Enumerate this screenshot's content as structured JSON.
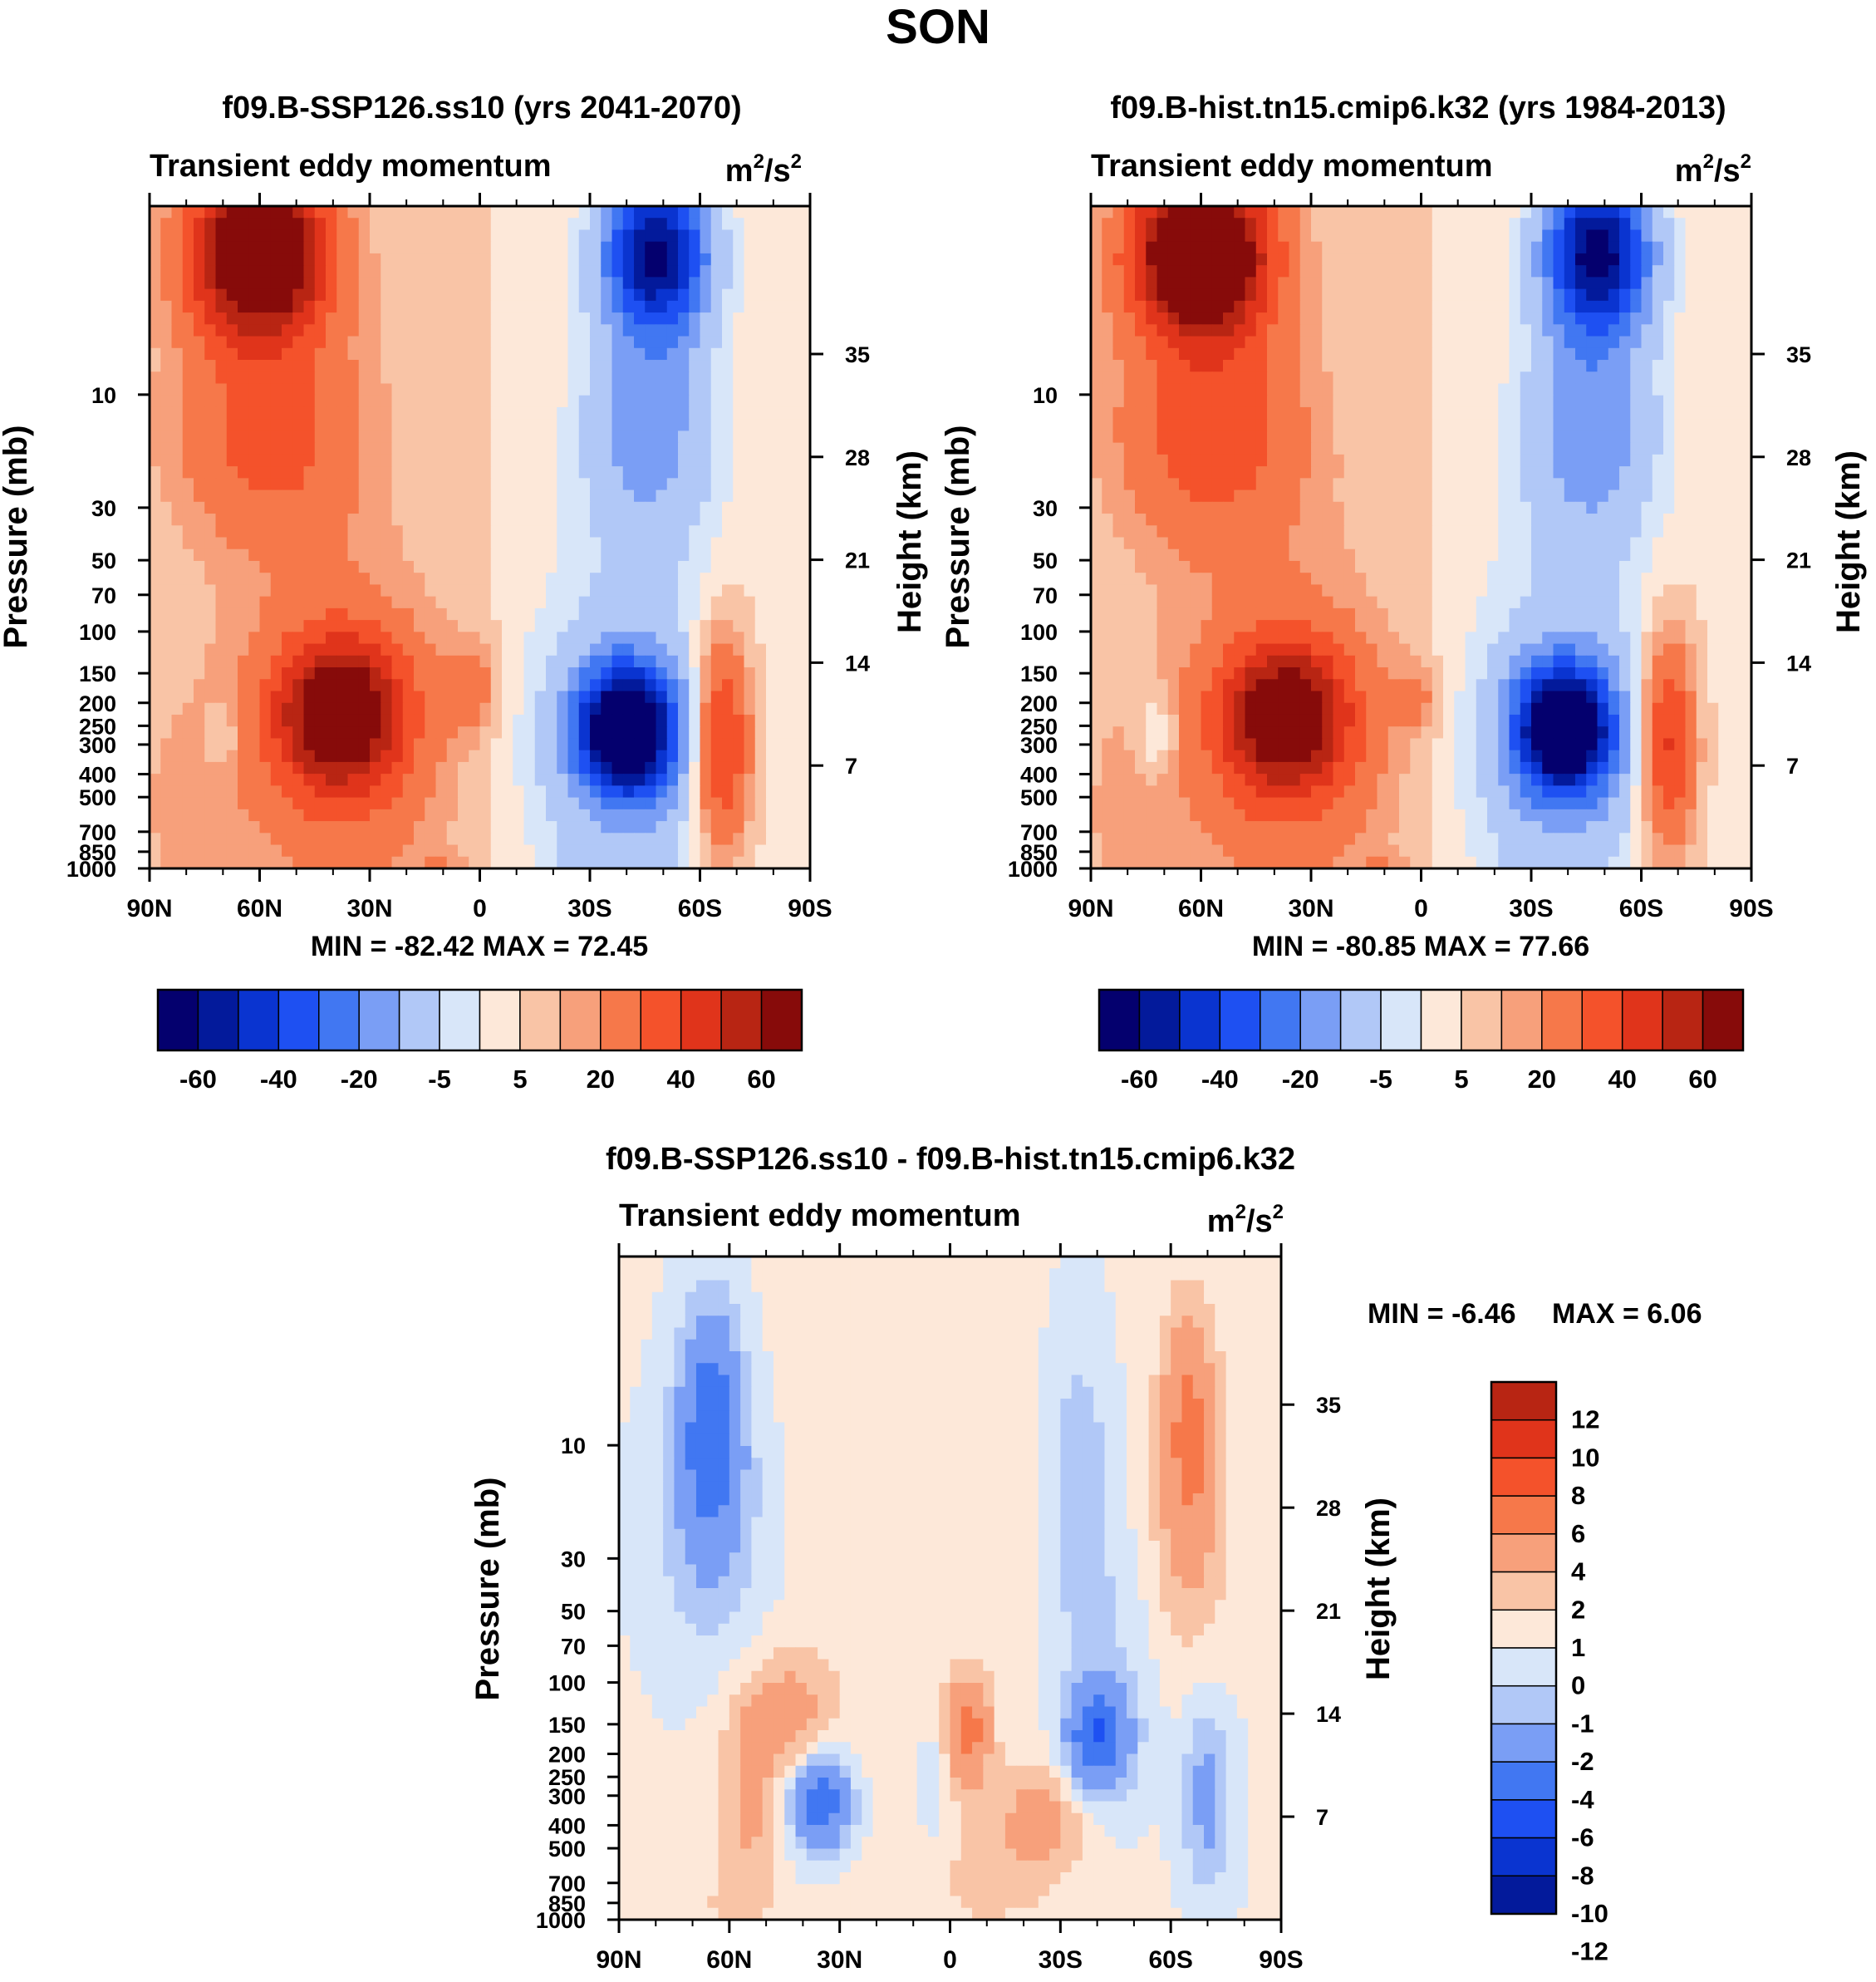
{
  "figure_title": "SON",
  "chart_data": [
    {
      "type": "heatmap",
      "panel": "top-left",
      "title": "f09.B-SSP126.ss10 (yrs 2041-2070)",
      "left_string": "Transient eddy momentum",
      "units_base": "m",
      "units_exp1": "2",
      "units_mid": "/s",
      "units_exp2": "2",
      "stats": "MIN = -82.42  MAX =  72.45",
      "min": -82.42,
      "max": 72.45,
      "xlabel": "",
      "ylabel": "Pressure (mb)",
      "y2label": "Height (km)",
      "x_tick_labels": [
        "90N",
        "60N",
        "30N",
        "0",
        "30S",
        "60S",
        "90S"
      ],
      "x_tick_values": [
        90,
        60,
        30,
        0,
        -30,
        -60,
        -90
      ],
      "y_ticks": [
        {
          "label": "10",
          "value": 10
        },
        {
          "label": "30",
          "value": 30
        },
        {
          "label": "50",
          "value": 50
        },
        {
          "label": "70",
          "value": 70
        },
        {
          "label": "100",
          "value": 100
        },
        {
          "label": "150",
          "value": 150
        },
        {
          "label": "200",
          "value": 200
        },
        {
          "label": "250",
          "value": 250
        },
        {
          "label": "300",
          "value": 300
        },
        {
          "label": "400",
          "value": 400
        },
        {
          "label": "500",
          "value": 500
        },
        {
          "label": "700",
          "value": 700
        },
        {
          "label": "850",
          "value": 850
        },
        {
          "label": "1000",
          "value": 1000
        }
      ],
      "y2_ticks": [
        {
          "label": "35",
          "value": 35
        },
        {
          "label": "28",
          "value": 28
        },
        {
          "label": "21",
          "value": 21
        },
        {
          "label": "14",
          "value": 14
        },
        {
          "label": "7",
          "value": 7
        }
      ],
      "levels": [
        -70,
        -60,
        -50,
        -40,
        -30,
        -20,
        -10,
        -5,
        0,
        5,
        10,
        20,
        30,
        40,
        50,
        60,
        70
      ],
      "colorbar_labels": [
        "-60",
        "-40",
        "-20",
        "-5",
        "5",
        "20",
        "40",
        "60"
      ],
      "features": [
        {
          "lat": 60,
          "p": 2.5,
          "amp": 80,
          "sx": 13,
          "sy": 0.55
        },
        {
          "lat": 57,
          "p": 14,
          "amp": 25,
          "sx": 18,
          "sy": 0.8
        },
        {
          "lat": 38,
          "p": 220,
          "amp": 55,
          "sx": 12,
          "sy": 0.5
        },
        {
          "lat": 38,
          "p": 300,
          "amp": 18,
          "sx": 22,
          "sy": 1.2
        },
        {
          "lat": 2,
          "p": 170,
          "amp": 14,
          "sx": 5,
          "sy": 0.3
        },
        {
          "lat": 80,
          "p": 600,
          "amp": 6,
          "sx": 10,
          "sy": 0.8
        },
        {
          "lat": 10,
          "p": 1000,
          "amp": 7,
          "sx": 5,
          "sy": 0.1
        },
        {
          "lat": -48,
          "p": 2.5,
          "amp": -72,
          "sx": 10,
          "sy": 0.55
        },
        {
          "lat": -46,
          "p": 14,
          "amp": -25,
          "sx": 13,
          "sy": 0.8
        },
        {
          "lat": -40,
          "p": 260,
          "amp": -88,
          "sx": 9,
          "sy": 0.42
        },
        {
          "lat": -40,
          "p": 300,
          "amp": -20,
          "sx": 20,
          "sy": 1.2
        },
        {
          "lat": -66,
          "p": 300,
          "amp": 40,
          "sx": 5.5,
          "sy": 0.75
        },
        {
          "lat": -30,
          "p": 1000,
          "amp": -6,
          "sx": 6,
          "sy": 0.1
        },
        {
          "lat": 70,
          "p": 280,
          "amp": -9,
          "sx": 4,
          "sy": 0.25
        }
      ]
    },
    {
      "type": "heatmap",
      "panel": "top-right",
      "title": "f09.B-hist.tn15.cmip6.k32 (yrs 1984-2013)",
      "left_string": "Transient eddy momentum",
      "units_base": "m",
      "units_exp1": "2",
      "units_mid": "/s",
      "units_exp2": "2",
      "stats": "MIN = -80.85  MAX =  77.66",
      "min": -80.85,
      "max": 77.66,
      "xlabel": "",
      "ylabel": "Pressure (mb)",
      "y2label": "Height (km)",
      "x_tick_labels": [
        "90N",
        "60N",
        "30N",
        "0",
        "30S",
        "60S",
        "90S"
      ],
      "x_tick_values": [
        90,
        60,
        30,
        0,
        -30,
        -60,
        -90
      ],
      "y_ticks": [
        {
          "label": "10",
          "value": 10
        },
        {
          "label": "30",
          "value": 30
        },
        {
          "label": "50",
          "value": 50
        },
        {
          "label": "70",
          "value": 70
        },
        {
          "label": "100",
          "value": 100
        },
        {
          "label": "150",
          "value": 150
        },
        {
          "label": "200",
          "value": 200
        },
        {
          "label": "250",
          "value": 250
        },
        {
          "label": "300",
          "value": 300
        },
        {
          "label": "400",
          "value": 400
        },
        {
          "label": "500",
          "value": 500
        },
        {
          "label": "700",
          "value": 700
        },
        {
          "label": "850",
          "value": 850
        },
        {
          "label": "1000",
          "value": 1000
        }
      ],
      "y2_ticks": [
        {
          "label": "35",
          "value": 35
        },
        {
          "label": "28",
          "value": 28
        },
        {
          "label": "21",
          "value": 21
        },
        {
          "label": "14",
          "value": 14
        },
        {
          "label": "7",
          "value": 7
        }
      ],
      "levels": [
        -70,
        -60,
        -50,
        -40,
        -30,
        -20,
        -10,
        -5,
        0,
        5,
        10,
        20,
        30,
        40,
        50,
        60,
        70
      ],
      "colorbar_labels": [
        "-60",
        "-40",
        "-20",
        "-5",
        "5",
        "20",
        "40",
        "60"
      ],
      "features": [
        {
          "lat": 60,
          "p": 2.5,
          "amp": 85,
          "sx": 13,
          "sy": 0.55
        },
        {
          "lat": 57,
          "p": 14,
          "amp": 27,
          "sx": 18,
          "sy": 0.8
        },
        {
          "lat": 37,
          "p": 230,
          "amp": 52,
          "sx": 12,
          "sy": 0.5
        },
        {
          "lat": 37,
          "p": 300,
          "amp": 18,
          "sx": 22,
          "sy": 1.2
        },
        {
          "lat": 1,
          "p": 190,
          "amp": 11,
          "sx": 4.5,
          "sy": 0.25
        },
        {
          "lat": 80,
          "p": 600,
          "amp": 6,
          "sx": 10,
          "sy": 0.8
        },
        {
          "lat": 10,
          "p": 1000,
          "amp": 6,
          "sx": 5,
          "sy": 0.1
        },
        {
          "lat": -48,
          "p": 2.5,
          "amp": -75,
          "sx": 10,
          "sy": 0.55
        },
        {
          "lat": -46,
          "p": 14,
          "amp": -27,
          "sx": 13,
          "sy": 0.8
        },
        {
          "lat": -39,
          "p": 260,
          "amp": -86,
          "sx": 9,
          "sy": 0.42
        },
        {
          "lat": -39,
          "p": 300,
          "amp": -20,
          "sx": 20,
          "sy": 1.2
        },
        {
          "lat": -67,
          "p": 300,
          "amp": 38,
          "sx": 5.5,
          "sy": 0.75
        },
        {
          "lat": -30,
          "p": 1000,
          "amp": -5,
          "sx": 6,
          "sy": 0.1
        },
        {
          "lat": 72,
          "p": 280,
          "amp": -12,
          "sx": 4,
          "sy": 0.3
        }
      ]
    },
    {
      "type": "heatmap",
      "panel": "bottom",
      "title": "f09.B-SSP126.ss10 - f09.B-hist.tn15.cmip6.k32",
      "left_string": "Transient eddy momentum",
      "units_base": "m",
      "units_exp1": "2",
      "units_mid": "/s",
      "units_exp2": "2",
      "stats_min": "MIN =  -6.46",
      "stats_max": "MAX =   6.06",
      "min": -6.46,
      "max": 6.06,
      "xlabel": "",
      "ylabel": "Pressure (mb)",
      "y2label": "Height (km)",
      "x_tick_labels": [
        "90N",
        "60N",
        "30N",
        "0",
        "30S",
        "60S",
        "90S"
      ],
      "x_tick_values": [
        90,
        60,
        30,
        0,
        -30,
        -60,
        -90
      ],
      "y_ticks": [
        {
          "label": "10",
          "value": 10
        },
        {
          "label": "30",
          "value": 30
        },
        {
          "label": "50",
          "value": 50
        },
        {
          "label": "70",
          "value": 70
        },
        {
          "label": "100",
          "value": 100
        },
        {
          "label": "150",
          "value": 150
        },
        {
          "label": "200",
          "value": 200
        },
        {
          "label": "250",
          "value": 250
        },
        {
          "label": "300",
          "value": 300
        },
        {
          "label": "400",
          "value": 400
        },
        {
          "label": "500",
          "value": 500
        },
        {
          "label": "700",
          "value": 700
        },
        {
          "label": "850",
          "value": 850
        },
        {
          "label": "1000",
          "value": 1000
        }
      ],
      "y2_ticks": [
        {
          "label": "35",
          "value": 35
        },
        {
          "label": "28",
          "value": 28
        },
        {
          "label": "21",
          "value": 21
        },
        {
          "label": "14",
          "value": 14
        },
        {
          "label": "7",
          "value": 7
        }
      ],
      "levels": [
        -12,
        -10,
        -8,
        -6,
        -4,
        -2,
        -1,
        0,
        1,
        2,
        4,
        6,
        8,
        10,
        12
      ],
      "colorbar_labels": [
        "12",
        "10",
        "8",
        "6",
        "4",
        "2",
        "1",
        "0",
        "-1",
        "-2",
        "-4",
        "-6",
        "-8",
        "-10",
        "-12"
      ],
      "features": [
        {
          "lat": 0,
          "p": 50,
          "amp": 0.5,
          "sx": 60,
          "sy": 3.5
        },
        {
          "lat": 65,
          "p": 8,
          "amp": -5.2,
          "sx": 6,
          "sy": 0.8
        },
        {
          "lat": 65,
          "p": 25,
          "amp": -1.8,
          "sx": 12,
          "sy": 1.0
        },
        {
          "lat": -65,
          "p": 8,
          "amp": 3.8,
          "sx": 5,
          "sy": 0.8
        },
        {
          "lat": -65,
          "p": 25,
          "amp": 1.6,
          "sx": 8,
          "sy": 1.0
        },
        {
          "lat": -35,
          "p": 15,
          "amp": -2.0,
          "sx": 7,
          "sy": 1.2
        },
        {
          "lat": -45,
          "p": 100,
          "amp": -1.2,
          "sx": 10,
          "sy": 1.0
        },
        {
          "lat": 45,
          "p": 140,
          "amp": 2.6,
          "sx": 10,
          "sy": 0.45
        },
        {
          "lat": 55,
          "p": 350,
          "amp": 2.0,
          "sx": 5,
          "sy": 0.6
        },
        {
          "lat": 35,
          "p": 320,
          "amp": -5.8,
          "sx": 6,
          "sy": 0.35
        },
        {
          "lat": 5,
          "p": 280,
          "amp": -1.4,
          "sx": 3,
          "sy": 0.4
        },
        {
          "lat": -5,
          "p": 160,
          "amp": 4.6,
          "sx": 4,
          "sy": 0.35
        },
        {
          "lat": -25,
          "p": 380,
          "amp": 2.4,
          "sx": 8,
          "sy": 0.35
        },
        {
          "lat": -40,
          "p": 170,
          "amp": -5.6,
          "sx": 6,
          "sy": 0.35
        },
        {
          "lat": -70,
          "p": 300,
          "amp": -2.8,
          "sx": 5,
          "sy": 0.7
        },
        {
          "lat": -10,
          "p": 700,
          "amp": 0.8,
          "sx": 15,
          "sy": 0.5
        },
        {
          "lat": 60,
          "p": 900,
          "amp": 0.8,
          "sx": 10,
          "sy": 0.3
        }
      ]
    }
  ],
  "colors": {
    "diverging_17": [
      "#04006e",
      "#031a9b",
      "#0a34d0",
      "#1e50f2",
      "#4177f2",
      "#7a9ef5",
      "#b1c8f7",
      "#d8e6f9",
      "#fde8d9",
      "#f9c4a6",
      "#f7a07b",
      "#f6784a",
      "#f4522b",
      "#e0341b",
      "#b82513",
      "#870b0a"
    ],
    "diff_14": [
      "#04006e",
      "#031a9b",
      "#0a34d0",
      "#1e50f2",
      "#4177f2",
      "#7a9ef5",
      "#b1c8f7",
      "#d8e6f9",
      "#fde8d9",
      "#f9c4a6",
      "#f7a07b",
      "#f6784a",
      "#f4522b",
      "#e0341b",
      "#b82513",
      "#870b0a"
    ]
  }
}
